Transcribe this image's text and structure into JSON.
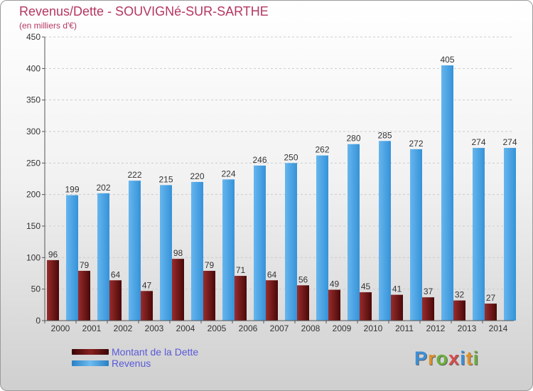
{
  "chart_data": {
    "type": "bar",
    "title": "Revenus/Dette - SOUVIGNé-SUR-SARTHE",
    "subtitle": "(en milliers d'€)",
    "categories": [
      "2000",
      "2001",
      "2002",
      "2003",
      "2004",
      "2005",
      "2006",
      "2007",
      "2008",
      "2009",
      "2010",
      "2011",
      "2012",
      "2013",
      "2014"
    ],
    "series": [
      {
        "name": "Montant de la Dette",
        "color": "#7a1818",
        "values": [
          96,
          79,
          64,
          47,
          98,
          79,
          71,
          64,
          56,
          49,
          45,
          41,
          37,
          32,
          27
        ]
      },
      {
        "name": "Revenus",
        "color": "#4aa2e0",
        "values": [
          199,
          202,
          222,
          215,
          220,
          224,
          246,
          250,
          262,
          280,
          285,
          272,
          405,
          274,
          274
        ]
      }
    ],
    "ylim": [
      0,
      450
    ],
    "yticks": [
      0,
      50,
      100,
      150,
      200,
      250,
      300,
      350,
      400,
      450
    ],
    "grid": true,
    "legend": "bottom-left"
  },
  "logo": {
    "letters": [
      "P",
      "r",
      "o",
      "x",
      "i",
      "t",
      "i"
    ],
    "colors": [
      "#3d8fd6",
      "#e0912a",
      "#6ab03a",
      "#d84a4a",
      "#3d8fd6",
      "#e0912a",
      "#6ab03a"
    ]
  }
}
